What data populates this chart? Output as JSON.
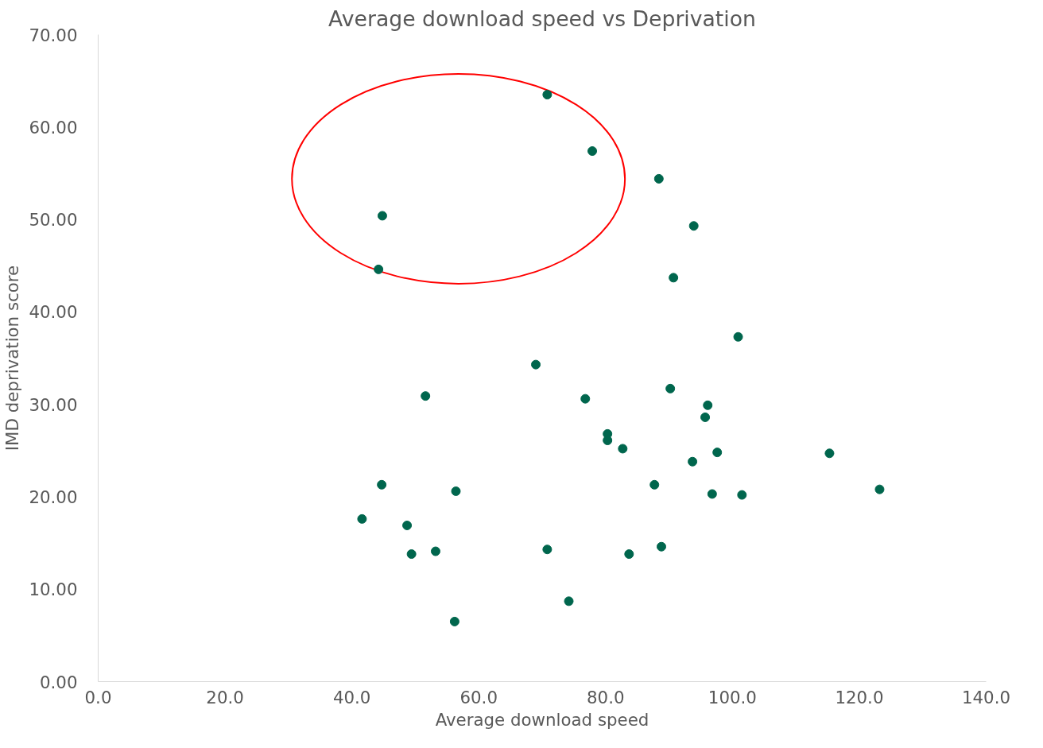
{
  "chart_data": {
    "type": "scatter",
    "title": "Average download speed vs Deprivation",
    "xlabel": "Average download speed",
    "ylabel": "IMD deprivation score",
    "x": [
      70.8,
      77.9,
      88.4,
      44.8,
      93.9,
      44.2,
      90.7,
      100.9,
      69.0,
      51.6,
      76.8,
      90.2,
      96.1,
      95.7,
      80.3,
      80.3,
      82.7,
      93.7,
      97.6,
      115.3,
      44.7,
      87.7,
      56.4,
      96.8,
      101.5,
      123.2,
      41.6,
      48.7,
      49.4,
      53.2,
      70.8,
      88.8,
      83.7,
      74.2,
      56.2
    ],
    "series": [
      {
        "color": "#00664d",
        "values": [
          63.5,
          57.4,
          54.4,
          50.4,
          49.3,
          44.6,
          43.7,
          37.3,
          34.3,
          30.9,
          30.6,
          31.7,
          29.9,
          28.6,
          26.8,
          26.1,
          25.2,
          23.8,
          24.8,
          24.7,
          21.3,
          21.3,
          20.6,
          20.3,
          20.2,
          20.8,
          17.6,
          16.9,
          13.8,
          14.1,
          14.3,
          14.6,
          13.8,
          8.7,
          6.5
        ]
      }
    ],
    "marker": "circle",
    "xlim": [
      0,
      140
    ],
    "ylim": [
      0,
      70
    ],
    "xticks": [
      {
        "value": 0,
        "label": "0.0"
      },
      {
        "value": 20,
        "label": "20.0"
      },
      {
        "value": 40,
        "label": "40.0"
      },
      {
        "value": 60,
        "label": "60.0"
      },
      {
        "value": 80,
        "label": "80.0"
      },
      {
        "value": 100,
        "label": "100.0"
      },
      {
        "value": 120,
        "label": "120.0"
      },
      {
        "value": 140,
        "label": "140.0"
      }
    ],
    "yticks": [
      {
        "value": 0,
        "label": "0.00"
      },
      {
        "value": 10,
        "label": "10.00"
      },
      {
        "value": 20,
        "label": "20.00"
      },
      {
        "value": 30,
        "label": "30.00"
      },
      {
        "value": 40,
        "label": "40.00"
      },
      {
        "value": 50,
        "label": "50.00"
      },
      {
        "value": 60,
        "label": "60.00"
      },
      {
        "value": 70,
        "label": "70.00"
      }
    ],
    "grid": false
  }
}
